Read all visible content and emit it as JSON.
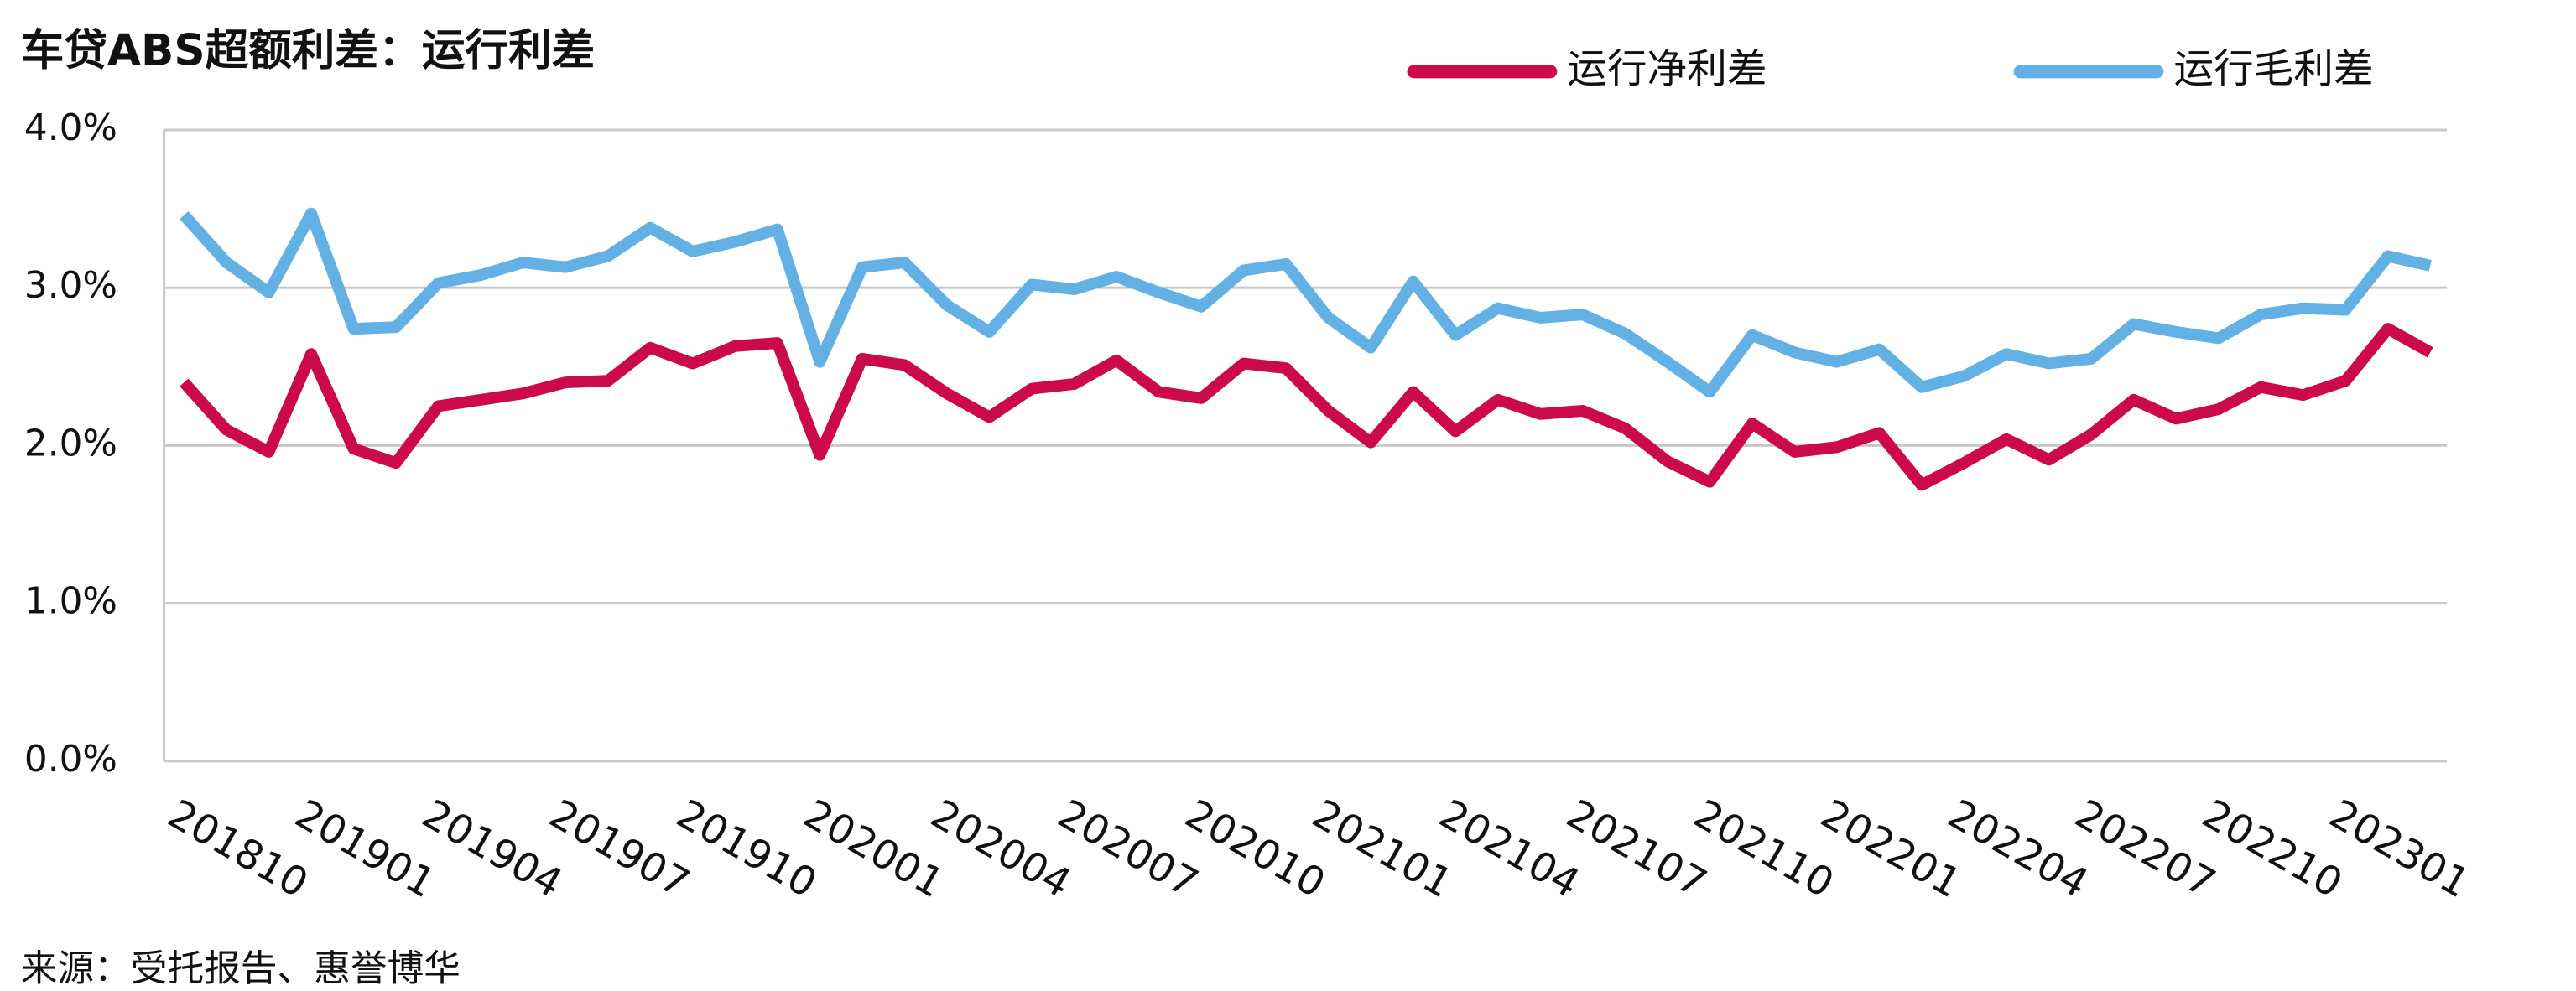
{
  "chart_data": {
    "type": "line",
    "title": "车贷ABS超额利差：运行利差",
    "source": "来源：受托报告、惠誉博华",
    "categories": [
      "201810",
      null,
      null,
      "201901",
      null,
      null,
      "201904",
      null,
      null,
      "201907",
      null,
      null,
      "201910",
      null,
      null,
      "202001",
      null,
      null,
      "202004",
      null,
      null,
      "202007",
      null,
      null,
      "202010",
      null,
      null,
      "202101",
      null,
      null,
      "202104",
      null,
      null,
      "202107",
      null,
      null,
      "202110",
      null,
      null,
      "202201",
      null,
      null,
      "202204",
      null,
      null,
      "202207",
      null,
      null,
      "202210",
      null,
      null,
      "202301",
      null,
      null
    ],
    "series": [
      {
        "name": "运行净利差",
        "color": "#cc0a4a",
        "values": [
          2.4,
          2.1,
          1.96,
          2.58,
          1.98,
          1.89,
          2.25,
          2.29,
          2.33,
          2.4,
          2.41,
          2.62,
          2.52,
          2.63,
          2.65,
          1.94,
          2.55,
          2.51,
          2.33,
          2.18,
          2.36,
          2.39,
          2.54,
          2.34,
          2.3,
          2.52,
          2.49,
          2.22,
          2.02,
          2.34,
          2.09,
          2.29,
          2.2,
          2.22,
          2.11,
          1.9,
          1.77,
          2.14,
          1.96,
          1.99,
          2.08,
          1.75,
          1.89,
          2.04,
          1.91,
          2.07,
          2.29,
          2.17,
          2.23,
          2.37,
          2.32,
          2.41,
          2.74,
          2.59
        ]
      },
      {
        "name": "运行毛利差",
        "color": "#62b0e4",
        "values": [
          3.46,
          3.16,
          2.97,
          3.47,
          2.74,
          2.75,
          3.03,
          3.08,
          3.16,
          3.13,
          3.2,
          3.38,
          3.23,
          3.29,
          3.37,
          2.53,
          3.13,
          3.16,
          2.89,
          2.72,
          3.02,
          2.99,
          3.07,
          2.97,
          2.88,
          3.11,
          3.15,
          2.81,
          2.62,
          3.04,
          2.7,
          2.87,
          2.81,
          2.83,
          2.71,
          2.53,
          2.34,
          2.7,
          2.59,
          2.53,
          2.61,
          2.37,
          2.44,
          2.58,
          2.52,
          2.55,
          2.77,
          2.72,
          2.68,
          2.83,
          2.87,
          2.86,
          3.2,
          3.14
        ]
      }
    ],
    "ylim": [
      0,
      4
    ],
    "yticks": [
      {
        "value": 0,
        "label": "0.0%"
      },
      {
        "value": 1,
        "label": "1.0%"
      },
      {
        "value": 2,
        "label": "2.0%"
      },
      {
        "value": 3,
        "label": "3.0%"
      },
      {
        "value": 4,
        "label": "4.0%"
      }
    ],
    "grid": true,
    "legend": "top-right"
  }
}
